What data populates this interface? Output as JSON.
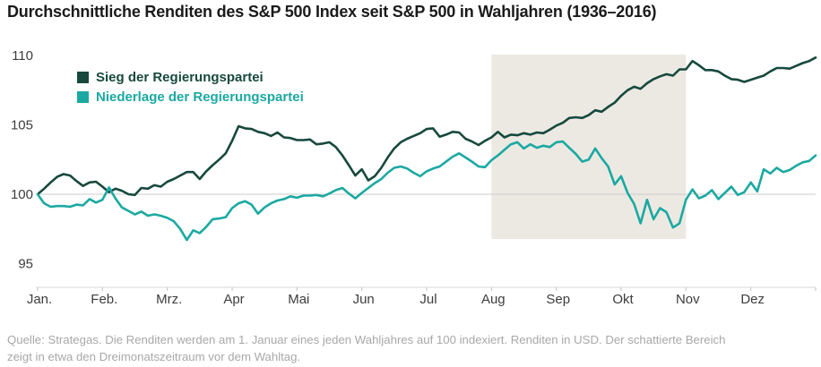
{
  "title": "Durchschnittliche Renditen des S&P 500 Index seit S&P 500 in Wahljahren (1936–2016)",
  "legend": {
    "items": [
      {
        "label": "Sieg der Regierungspartei",
        "color": "#17493D"
      },
      {
        "label": "Niederlage der Regierungspartei",
        "color": "#1BA9A1"
      }
    ]
  },
  "footer": {
    "line1": "Quelle: Strategas. Die Renditen werden am 1. Januar eines jeden Wahljahres auf 100 indexiert. Renditen in USD. Der schattierte Bereich",
    "line2": "zeigt in etwa den Dreimonatszeitraum vor dem Wahltag."
  },
  "chart_data": {
    "type": "line",
    "title": "Durchschnittliche Renditen des S&P 500 Index seit S&P 500 in Wahljahren (1936–2016)",
    "x_axis": {
      "labels": [
        "Jan.",
        "Feb.",
        "Mrz.",
        "Apr",
        "Mai",
        "Jun",
        "Jul",
        "Aug",
        "Sep",
        "Okt",
        "Nov",
        "Dez"
      ]
    },
    "y_axis": {
      "ticks": [
        110,
        105,
        100,
        95
      ],
      "range": [
        93.2,
        110.4
      ]
    },
    "baseline": 100,
    "grid": "only-100-line",
    "legend_position": "top-left",
    "shaded_region": {
      "from_month_index": 7,
      "to_month_index": 10,
      "color": "#ECE9E3",
      "meaning": "Dreimonatszeitraum vor dem Wahltag"
    },
    "series": [
      {
        "name": "Sieg der Regierungspartei",
        "color": "#17493D",
        "values": [
          100.0,
          100.4,
          100.85,
          101.25,
          101.45,
          101.35,
          100.95,
          100.6,
          100.85,
          100.9,
          100.55,
          100.15,
          100.4,
          100.25,
          100.0,
          99.95,
          100.45,
          100.4,
          100.65,
          100.55,
          100.9,
          101.1,
          101.35,
          101.6,
          101.6,
          101.1,
          101.65,
          102.1,
          102.5,
          102.95,
          103.85,
          104.9,
          104.75,
          104.7,
          104.5,
          104.4,
          104.2,
          104.45,
          104.1,
          104.05,
          103.9,
          103.9,
          103.95,
          103.6,
          103.65,
          103.75,
          103.4,
          102.8,
          102.1,
          101.35,
          101.8,
          101.0,
          101.3,
          101.9,
          102.65,
          103.3,
          103.75,
          104.0,
          104.2,
          104.4,
          104.7,
          104.75,
          104.15,
          104.3,
          104.5,
          104.45,
          104.0,
          103.8,
          103.55,
          103.85,
          104.1,
          104.5,
          104.1,
          104.3,
          104.25,
          104.4,
          104.3,
          104.45,
          104.4,
          104.65,
          104.95,
          105.15,
          105.5,
          105.55,
          105.5,
          105.7,
          106.05,
          105.95,
          106.3,
          106.6,
          107.1,
          107.5,
          107.75,
          107.6,
          108.0,
          108.3,
          108.5,
          108.65,
          108.55,
          109.0,
          109.0,
          109.6,
          109.3,
          108.95,
          108.95,
          108.85,
          108.55,
          108.3,
          108.25,
          108.1,
          108.25,
          108.4,
          108.55,
          108.85,
          109.1,
          109.1,
          109.05,
          109.25,
          109.45,
          109.6,
          109.85
        ]
      },
      {
        "name": "Niederlage der Regierungspartei",
        "color": "#1BA9A1",
        "values": [
          100.0,
          99.35,
          99.1,
          99.15,
          99.15,
          99.1,
          99.25,
          99.2,
          99.65,
          99.4,
          99.6,
          100.5,
          99.7,
          99.05,
          98.8,
          98.55,
          98.75,
          98.45,
          98.55,
          98.45,
          98.3,
          98.05,
          97.5,
          96.7,
          97.4,
          97.2,
          97.65,
          98.2,
          98.25,
          98.35,
          99.0,
          99.35,
          99.5,
          99.25,
          98.6,
          99.05,
          99.35,
          99.55,
          99.65,
          99.85,
          99.75,
          99.9,
          99.9,
          99.95,
          99.85,
          100.05,
          100.3,
          100.45,
          100.05,
          99.7,
          100.1,
          100.45,
          100.8,
          101.1,
          101.55,
          101.9,
          102.0,
          101.85,
          101.55,
          101.3,
          101.65,
          101.85,
          102.0,
          102.35,
          102.7,
          102.95,
          102.65,
          102.35,
          102.0,
          101.95,
          102.45,
          102.8,
          103.2,
          103.6,
          103.75,
          103.3,
          103.6,
          103.35,
          103.5,
          103.4,
          103.75,
          103.8,
          103.35,
          102.9,
          102.35,
          102.5,
          103.3,
          102.6,
          102.0,
          100.7,
          101.3,
          100.1,
          99.3,
          97.9,
          99.6,
          98.2,
          99.0,
          98.7,
          97.6,
          97.9,
          99.6,
          100.35,
          99.7,
          99.9,
          100.3,
          99.65,
          100.1,
          100.55,
          99.95,
          100.15,
          100.85,
          100.2,
          101.8,
          101.5,
          101.9,
          101.6,
          101.75,
          102.05,
          102.3,
          102.4,
          102.8
        ]
      }
    ]
  }
}
